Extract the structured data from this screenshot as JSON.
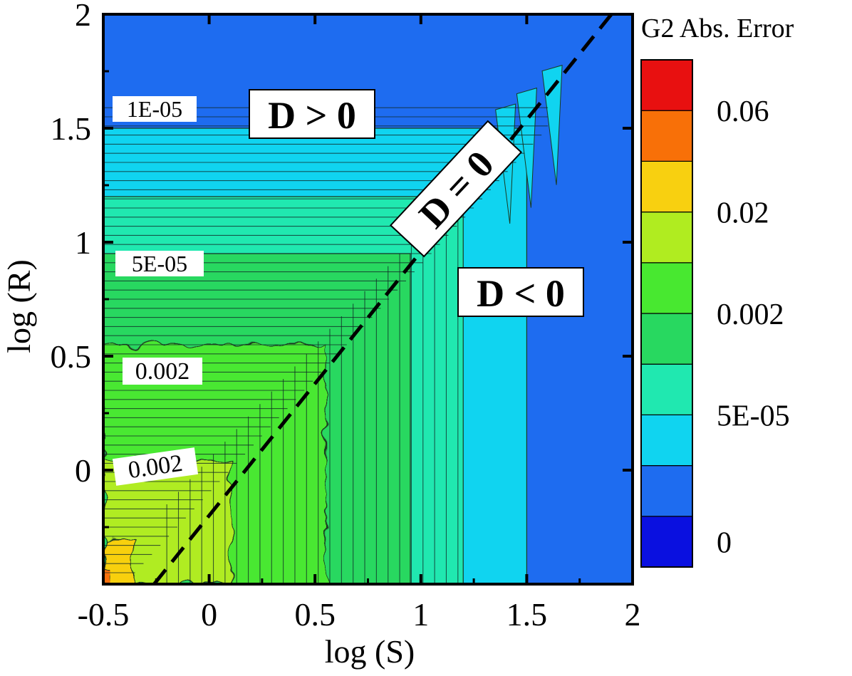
{
  "chart_data": {
    "type": "heatmap",
    "title": "",
    "xlabel": "log (S)",
    "ylabel": "log (R)",
    "xlim": [
      -0.5,
      2
    ],
    "ylim": [
      -0.5,
      2
    ],
    "xticks": [
      -0.5,
      0,
      0.5,
      1,
      1.5,
      2
    ],
    "yticks": [
      0,
      0.5,
      1,
      1.5,
      2
    ],
    "xtick_labels": [
      "-0.5",
      "0",
      "0.5",
      "1",
      "1.5",
      "2"
    ],
    "ytick_labels": [
      "0",
      "0.5",
      "1",
      "1.5",
      "2"
    ],
    "grid": false,
    "colorbar": {
      "title": "G2 Abs. Error",
      "levels": 9,
      "colors": [
        "#0a10e0",
        "#1e6cf0",
        "#10d4f0",
        "#20e8b0",
        "#28d860",
        "#48e830",
        "#b0ec20",
        "#f8d010",
        "#f87008",
        "#e81010"
      ],
      "labels": [
        "0",
        "5E-05",
        "0.002",
        "0.02",
        "0.06"
      ]
    },
    "discriminant_line": {
      "label": "D = 0",
      "points": [
        [
          -0.26,
          -0.5
        ],
        [
          1.9,
          2
        ]
      ]
    },
    "contour_labels": [
      "1E-05",
      "5E-05",
      "0.002",
      "0.002"
    ],
    "region_labels": [
      "D > 0",
      "D = 0",
      "D < 0"
    ]
  }
}
